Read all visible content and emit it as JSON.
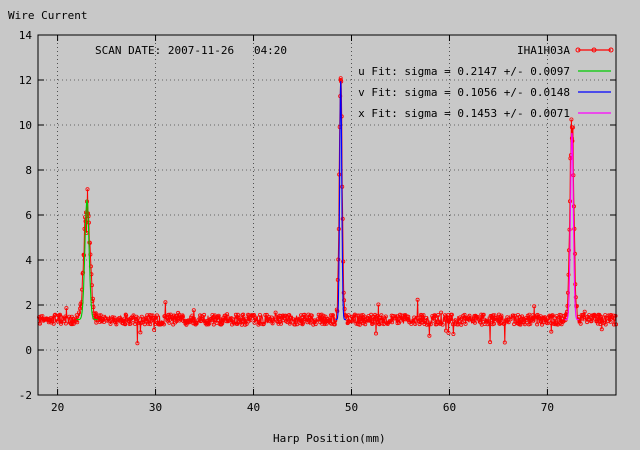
{
  "chart_data": {
    "type": "line",
    "title": "",
    "ylabel": "Wire Current",
    "xlabel": "Harp Position(mm)",
    "annotation": "SCAN DATE: 2007-11-26   04:20",
    "xlim": [
      18,
      77
    ],
    "ylim": [
      -2,
      14
    ],
    "xticks": [
      20,
      30,
      40,
      50,
      60,
      70
    ],
    "yticks": [
      -2,
      0,
      2,
      4,
      6,
      8,
      10,
      12,
      14
    ],
    "grid": true,
    "legend_position": "top-right",
    "baseline": 1.35,
    "series": [
      {
        "name": "IHA1H03A",
        "color": "#ff0000",
        "style": "line-points",
        "peaks": [
          {
            "x": 23.0,
            "y": 6.6
          },
          {
            "x": 48.9,
            "y": 12.0
          },
          {
            "x": 72.5,
            "y": 9.9
          }
        ]
      },
      {
        "name": "u  Fit: sigma = 0.2147 +/- 0.0097",
        "color": "#00cc00",
        "fit": {
          "center": 23.0,
          "sigma": 0.2147,
          "amplitude": 5.3
        }
      },
      {
        "name": "v  Fit: sigma = 0.1056 +/- 0.0148",
        "color": "#0000ff",
        "fit": {
          "center": 48.9,
          "sigma": 0.1056,
          "amplitude": 10.6
        }
      },
      {
        "name": "x  Fit: sigma = 0.1453 +/- 0.0071",
        "color": "#ff00ff",
        "fit": {
          "center": 72.5,
          "sigma": 0.1453,
          "amplitude": 8.3
        }
      }
    ]
  }
}
